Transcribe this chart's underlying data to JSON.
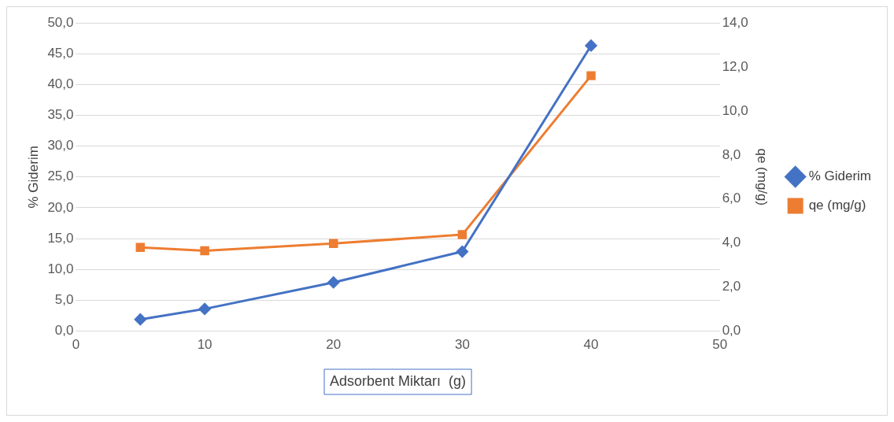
{
  "chart_data": {
    "type": "line",
    "xlabel": "Adsorbent Miktarı  (g)",
    "ylabel": "% Giderim",
    "y2label": "qe (mg/g)",
    "x": [
      5,
      10,
      20,
      30,
      40
    ],
    "series": [
      {
        "name": "% Giderim",
        "color": "#4472c4",
        "values": [
          1.9,
          3.6,
          7.9,
          12.9,
          46.3
        ],
        "marker": "diamond"
      },
      {
        "name": "qe (mg/g)",
        "color": "#ed7d31",
        "values": [
          3.8,
          3.65,
          3.98,
          4.38,
          11.6
        ],
        "marker": "square",
        "axis": "y2"
      }
    ],
    "xlim": [
      0,
      50
    ],
    "xticks": [
      0,
      10,
      20,
      30,
      40,
      50
    ],
    "ylim": [
      0,
      50
    ],
    "yticks": [
      {
        "value": 0,
        "label": "0,0"
      },
      {
        "value": 5,
        "label": "5,0"
      },
      {
        "value": 10,
        "label": "10,0"
      },
      {
        "value": 15,
        "label": "15,0"
      },
      {
        "value": 20,
        "label": "20,0"
      },
      {
        "value": 25,
        "label": "25,0"
      },
      {
        "value": 30,
        "label": "30,0"
      },
      {
        "value": 35,
        "label": "35,0"
      },
      {
        "value": 40,
        "label": "40,0"
      },
      {
        "value": 45,
        "label": "45,0"
      },
      {
        "value": 50,
        "label": "50,0"
      }
    ],
    "y2lim": [
      0,
      14
    ],
    "y2ticks": [
      {
        "value": 0,
        "label": "0,0"
      },
      {
        "value": 2,
        "label": "2,0"
      },
      {
        "value": 4,
        "label": "4,0"
      },
      {
        "value": 6,
        "label": "6,0"
      },
      {
        "value": 8,
        "label": "8,0"
      },
      {
        "value": 10,
        "label": "10,0"
      },
      {
        "value": 12,
        "label": "12,0"
      },
      {
        "value": 14,
        "label": "14,0"
      }
    ],
    "grid": "y",
    "legend": "right",
    "line_style": "solid"
  }
}
